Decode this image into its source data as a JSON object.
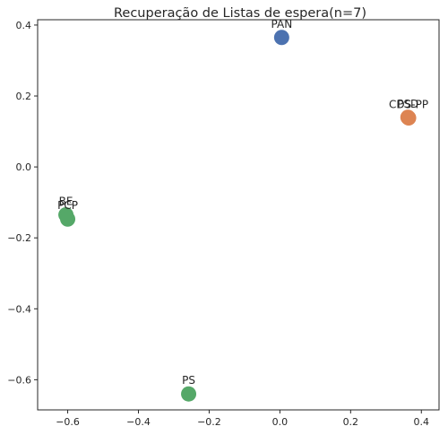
{
  "chart_data": {
    "type": "scatter",
    "title": "Recuperação de Listas de espera(n=7)",
    "xlabel": "",
    "ylabel": "",
    "xlim": [
      -0.685,
      0.45
    ],
    "ylim": [
      -0.685,
      0.415
    ],
    "x_ticks": [
      -0.6,
      -0.4,
      -0.2,
      0.0,
      0.2,
      0.4
    ],
    "x_tick_labels": [
      "−0.6",
      "−0.4",
      "−0.2",
      "0.0",
      "0.2",
      "0.4"
    ],
    "y_ticks": [
      0.4,
      0.2,
      0.0,
      -0.2,
      -0.4,
      -0.6
    ],
    "y_tick_labels": [
      "0.4",
      "0.2",
      "0.0",
      "−0.2",
      "−0.4",
      "−0.6"
    ],
    "grid": false,
    "points": [
      {
        "label": "PAN",
        "x": 0.005,
        "y": 0.365,
        "color": "#4c72b0"
      },
      {
        "label": "PSD",
        "x": 0.362,
        "y": 0.14,
        "color": "#dd8452"
      },
      {
        "label": "CDS-PP",
        "x": 0.364,
        "y": 0.138,
        "color": "#dd8452"
      },
      {
        "label": "BE",
        "x": -0.605,
        "y": -0.135,
        "color": "#55a868"
      },
      {
        "label": "PCP",
        "x": -0.6,
        "y": -0.147,
        "color": "#55a868"
      },
      {
        "label": "PS",
        "x": -0.258,
        "y": -0.64,
        "color": "#55a868"
      }
    ]
  }
}
